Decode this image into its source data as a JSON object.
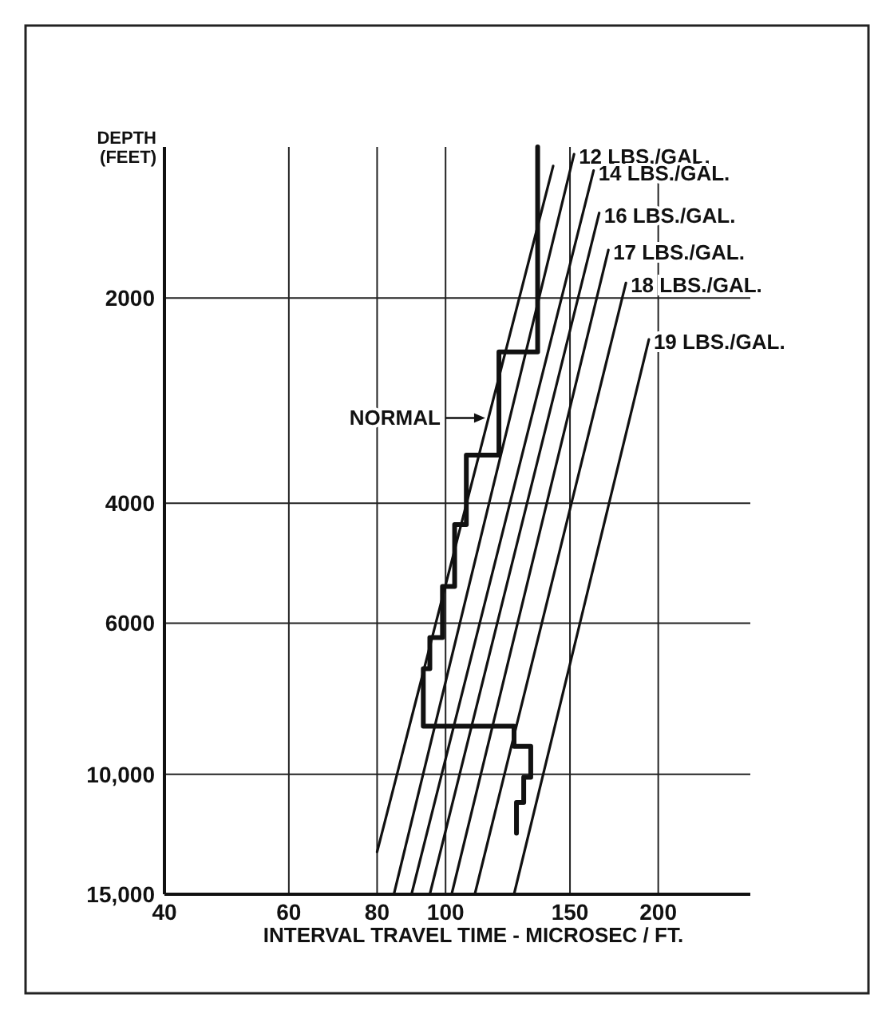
{
  "chart_data": {
    "type": "line",
    "ylabel": "DEPTH\n(FEET)",
    "xlabel": "INTERVAL TRAVEL TIME - MICROSEC / FT.",
    "log": "xy",
    "xlim": [
      40,
      270
    ],
    "xticks": [
      40,
      60,
      80,
      100,
      150,
      200
    ],
    "ylim": [
      15000,
      1200
    ],
    "yticks": [
      2000,
      4000,
      6000,
      {
        "value": 10000,
        "label": "10,000"
      },
      {
        "value": 15000,
        "label": "15,000"
      }
    ],
    "grid": true,
    "marker": "none",
    "line_style": "solid",
    "series": [
      {
        "color": "#111111",
        "x": [
          80,
          142
        ],
        "values": [
          13000,
          1280
        ]
      },
      {
        "name": "12 LBS./GAL.",
        "color": "#111111",
        "x": [
          84.5,
          152
        ],
        "values": [
          15000,
          1230
        ]
      },
      {
        "name": "14 LBS./GAL.",
        "color": "#111111",
        "x": [
          89.5,
          162
        ],
        "values": [
          15000,
          1300
        ]
      },
      {
        "name": "16 LBS./GAL.",
        "color": "#111111",
        "x": [
          95,
          165
        ],
        "values": [
          15000,
          1500
        ]
      },
      {
        "name": "17 LBS./GAL.",
        "color": "#111111",
        "x": [
          102,
          170
        ],
        "values": [
          15000,
          1700
        ]
      },
      {
        "name": "18 LBS./GAL.",
        "color": "#111111",
        "x": [
          110,
          180
        ],
        "values": [
          15000,
          1900
        ]
      },
      {
        "name": "19 LBS./GAL.",
        "color": "#111111",
        "x": [
          125,
          194
        ],
        "values": [
          15000,
          2300
        ]
      },
      {
        "color": "#111111",
        "x": [
          135,
          135,
          119,
          119,
          107,
          107,
          103,
          103,
          99,
          99,
          95,
          95,
          93,
          93,
          125,
          125,
          132,
          132,
          129,
          129,
          126,
          126
        ],
        "values": [
          1200,
          2400,
          2400,
          3400,
          3400,
          4300,
          4300,
          5300,
          5300,
          6300,
          6300,
          7000,
          7000,
          8500,
          8500,
          9100,
          9100,
          10100,
          10100,
          11000,
          11000,
          12200
        ]
      }
    ],
    "annotations": [
      {
        "text": "NORMAL",
        "x": 115,
        "y": 3000
      }
    ]
  }
}
